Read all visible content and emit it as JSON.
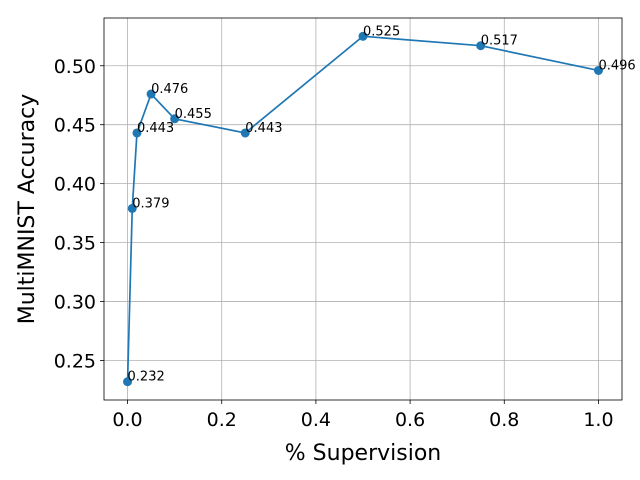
{
  "chart_data": {
    "type": "line",
    "title": "",
    "xlabel": "% Supervision",
    "ylabel": "MultiMNIST Accuracy",
    "xlim": [
      -0.05,
      1.05
    ],
    "ylim": [
      0.2165,
      0.5405
    ],
    "xticks": [
      0.0,
      0.2,
      0.4,
      0.6,
      0.8,
      1.0
    ],
    "xtick_labels": [
      "0.0",
      "0.2",
      "0.4",
      "0.6",
      "0.8",
      "1.0"
    ],
    "yticks": [
      0.25,
      0.3,
      0.35,
      0.4,
      0.45,
      0.5
    ],
    "ytick_labels": [
      "0.25",
      "0.30",
      "0.35",
      "0.40",
      "0.45",
      "0.50"
    ],
    "grid": true,
    "series": [
      {
        "color": "#1f77b4",
        "marker": "circle",
        "x": [
          0.0,
          0.01,
          0.02,
          0.05,
          0.1,
          0.25,
          0.5,
          0.75,
          1.0
        ],
        "y": [
          0.232,
          0.379,
          0.443,
          0.476,
          0.455,
          0.443,
          0.525,
          0.517,
          0.496
        ],
        "labels": [
          "0.232",
          "0.379",
          "0.443",
          "0.476",
          "0.455",
          "0.443",
          "0.525",
          "0.517",
          "0.496"
        ]
      }
    ]
  }
}
